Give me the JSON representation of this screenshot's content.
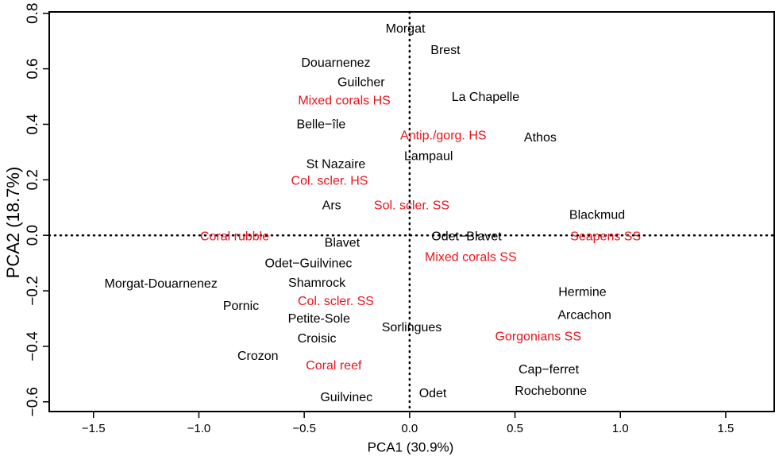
{
  "chart_data": {
    "type": "scatter",
    "x_label": "PCA1 (30.9%)",
    "y_label": "PCA2 (18.7%)",
    "xlim": [
      -1.71,
      1.73
    ],
    "ylim": [
      -0.635,
      0.805
    ],
    "xticks": [
      {
        "value": -1.5,
        "label": "−1.5"
      },
      {
        "value": -1.0,
        "label": "−1.0"
      },
      {
        "value": -0.5,
        "label": "−0.5"
      },
      {
        "value": 0.0,
        "label": "0.0"
      },
      0.5,
      {
        "value": 1.0,
        "label": "1.0"
      },
      1.5
    ],
    "yticks": [
      {
        "value": -0.6,
        "label": "−0.6"
      },
      {
        "value": -0.4,
        "label": "−0.4"
      },
      {
        "value": -0.2,
        "label": "−0.2"
      },
      {
        "value": 0.0,
        "label": "0.0"
      },
      0.2,
      0.4,
      0.6,
      0.8
    ],
    "reference_x": 0,
    "reference_y": 0,
    "points": [
      {
        "label": "Morgat",
        "x": -0.02,
        "y": 0.743,
        "color": "#000000"
      },
      {
        "label": "Brest",
        "x": 0.17,
        "y": 0.666,
        "color": "#000000"
      },
      {
        "label": "Douarnenez",
        "x": -0.35,
        "y": 0.62,
        "color": "#000000"
      },
      {
        "label": "Guilcher",
        "x": -0.23,
        "y": 0.549,
        "color": "#000000"
      },
      {
        "label": "Mixed corals HS",
        "x": -0.31,
        "y": 0.483,
        "color": "#e8141c"
      },
      {
        "label": "La Chapelle",
        "x": 0.36,
        "y": 0.497,
        "color": "#000000"
      },
      {
        "label": "Belle−île",
        "x": -0.42,
        "y": 0.397,
        "color": "#000000"
      },
      {
        "label": "Antip./gorg. HS",
        "x": 0.16,
        "y": 0.357,
        "color": "#e8141c"
      },
      {
        "label": "Athos",
        "x": 0.62,
        "y": 0.351,
        "color": "#000000"
      },
      {
        "label": "Lampaul",
        "x": 0.09,
        "y": 0.283,
        "color": "#000000"
      },
      {
        "label": "St Nazaire",
        "x": -0.35,
        "y": 0.254,
        "color": "#000000"
      },
      {
        "label": "Col. scler. HS",
        "x": -0.38,
        "y": 0.194,
        "color": "#e8141c"
      },
      {
        "label": "Ars",
        "x": -0.37,
        "y": 0.106,
        "color": "#000000"
      },
      {
        "label": "Sol. scler. SS",
        "x": 0.01,
        "y": 0.106,
        "color": "#e8141c"
      },
      {
        "label": "Blackmud",
        "x": 0.89,
        "y": 0.071,
        "color": "#000000"
      },
      {
        "label": "Coral rubble",
        "x": -0.83,
        "y": -0.006,
        "color": "#e8141c"
      },
      {
        "label": "Seapens SS",
        "x": 0.93,
        "y": -0.006,
        "color": "#e8141c"
      },
      {
        "label": "Odet−Blavet",
        "x": 0.27,
        "y": -0.006,
        "color": "#000000"
      },
      {
        "label": "Blavet",
        "x": -0.32,
        "y": -0.029,
        "color": "#000000"
      },
      {
        "label": "Mixed corals SS",
        "x": 0.29,
        "y": -0.08,
        "color": "#e8141c"
      },
      {
        "label": "Odet−Guilvinec",
        "x": -0.48,
        "y": -0.103,
        "color": "#000000"
      },
      {
        "label": "Shamrock",
        "x": -0.44,
        "y": -0.174,
        "color": "#000000"
      },
      {
        "label": "Morgat-Douarnenez",
        "x": -1.18,
        "y": -0.177,
        "color": "#000000"
      },
      {
        "label": "Col. scler. SS",
        "x": -0.35,
        "y": -0.24,
        "color": "#e8141c"
      },
      {
        "label": "Hermine",
        "x": 0.82,
        "y": -0.206,
        "color": "#000000"
      },
      {
        "label": "Pornic",
        "x": -0.8,
        "y": -0.257,
        "color": "#000000"
      },
      {
        "label": "Arcachon",
        "x": 0.83,
        "y": -0.289,
        "color": "#000000"
      },
      {
        "label": "Petite-Sole",
        "x": -0.43,
        "y": -0.303,
        "color": "#000000"
      },
      {
        "label": "Sorlingues",
        "x": 0.01,
        "y": -0.334,
        "color": "#000000"
      },
      {
        "label": "Gorgonians SS",
        "x": 0.61,
        "y": -0.366,
        "color": "#e8141c"
      },
      {
        "label": "Croisic",
        "x": -0.44,
        "y": -0.374,
        "color": "#000000"
      },
      {
        "label": "Crozon",
        "x": -0.72,
        "y": -0.437,
        "color": "#000000"
      },
      {
        "label": "Coral reef",
        "x": -0.36,
        "y": -0.471,
        "color": "#e8141c"
      },
      {
        "label": "Cap−ferret",
        "x": 0.66,
        "y": -0.486,
        "color": "#000000"
      },
      {
        "label": "Rochebonne",
        "x": 0.67,
        "y": -0.563,
        "color": "#000000"
      },
      {
        "label": "Guilvinec",
        "x": -0.3,
        "y": -0.586,
        "color": "#000000"
      },
      {
        "label": "Odet",
        "x": 0.11,
        "y": -0.571,
        "color": "#000000"
      }
    ]
  }
}
